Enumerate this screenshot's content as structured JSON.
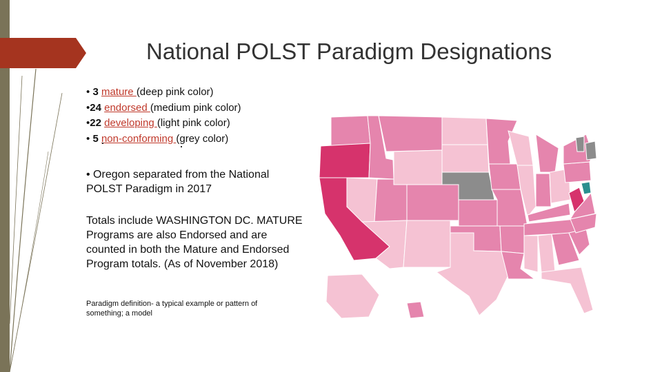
{
  "slide": {
    "title": "National POLST Paradigm Designations",
    "bullets": [
      {
        "marker": "•",
        "count": "3",
        "link": "mature ",
        "desc": "(deep pink color)"
      },
      {
        "marker": "•",
        "count": "24",
        "link": "endorsed ",
        "desc": "(medium pink color)"
      },
      {
        "marker": "•",
        "count": "22",
        "link": "developing ",
        "desc": "(light pink color)"
      },
      {
        "marker": "•",
        "count": "5",
        "link": "non-conforming ",
        "desc": "(grey color)"
      }
    ],
    "oregon_note": "• Oregon separated from the National POLST Paradigm in 2017",
    "totals_note": "Totals include WASHINGTON DC. MATURE Programs are also Endorsed and are counted in both the Mature and Endorsed Program totals. (As of November 2018)",
    "definition": "Paradigm definition- a typical example or pattern of something; a model"
  },
  "colors": {
    "mature": "#d6336c",
    "endorsed": "#e585ad",
    "developing": "#f5c2d3",
    "non_conforming": "#8c8c8c",
    "special": "#2a8f8f",
    "accent": "#a5341f",
    "link": "#c0392b"
  }
}
